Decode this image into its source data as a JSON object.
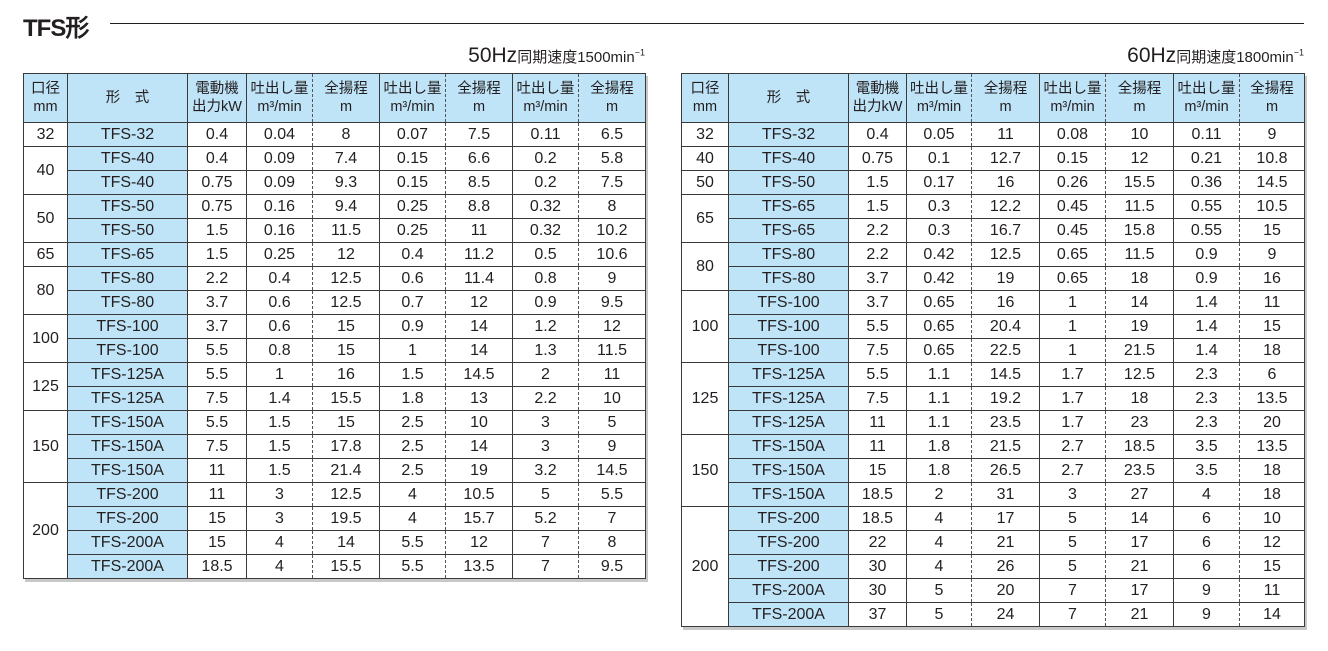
{
  "title": "TFS形",
  "headers": {
    "bore": [
      "口径",
      "mm"
    ],
    "model": "形　式",
    "power": [
      "電動機",
      "出力kW"
    ],
    "flow": [
      "吐出し量",
      "m³/min"
    ],
    "head": [
      "全揚程",
      "m"
    ]
  },
  "tables": [
    {
      "hz": "50Hz",
      "speed": "同期速度1500min",
      "speed_sup": "−1",
      "groups": [
        {
          "bore": "32",
          "rows": [
            [
              "TFS-32",
              "0.4",
              "0.04",
              "8",
              "0.07",
              "7.5",
              "0.11",
              "6.5"
            ]
          ]
        },
        {
          "bore": "40",
          "rows": [
            [
              "TFS-40",
              "0.4",
              "0.09",
              "7.4",
              "0.15",
              "6.6",
              "0.2",
              "5.8"
            ],
            [
              "TFS-40",
              "0.75",
              "0.09",
              "9.3",
              "0.15",
              "8.5",
              "0.2",
              "7.5"
            ]
          ]
        },
        {
          "bore": "50",
          "rows": [
            [
              "TFS-50",
              "0.75",
              "0.16",
              "9.4",
              "0.25",
              "8.8",
              "0.32",
              "8"
            ],
            [
              "TFS-50",
              "1.5",
              "0.16",
              "11.5",
              "0.25",
              "11",
              "0.32",
              "10.2"
            ]
          ]
        },
        {
          "bore": "65",
          "rows": [
            [
              "TFS-65",
              "1.5",
              "0.25",
              "12",
              "0.4",
              "11.2",
              "0.5",
              "10.6"
            ]
          ]
        },
        {
          "bore": "80",
          "rows": [
            [
              "TFS-80",
              "2.2",
              "0.4",
              "12.5",
              "0.6",
              "11.4",
              "0.8",
              "9"
            ],
            [
              "TFS-80",
              "3.7",
              "0.6",
              "12.5",
              "0.7",
              "12",
              "0.9",
              "9.5"
            ]
          ]
        },
        {
          "bore": "100",
          "rows": [
            [
              "TFS-100",
              "3.7",
              "0.6",
              "15",
              "0.9",
              "14",
              "1.2",
              "12"
            ],
            [
              "TFS-100",
              "5.5",
              "0.8",
              "15",
              "1",
              "14",
              "1.3",
              "11.5"
            ]
          ]
        },
        {
          "bore": "125",
          "rows": [
            [
              "TFS-125A",
              "5.5",
              "1",
              "16",
              "1.5",
              "14.5",
              "2",
              "11"
            ],
            [
              "TFS-125A",
              "7.5",
              "1.4",
              "15.5",
              "1.8",
              "13",
              "2.2",
              "10"
            ]
          ]
        },
        {
          "bore": "150",
          "rows": [
            [
              "TFS-150A",
              "5.5",
              "1.5",
              "15",
              "2.5",
              "10",
              "3",
              "5"
            ],
            [
              "TFS-150A",
              "7.5",
              "1.5",
              "17.8",
              "2.5",
              "14",
              "3",
              "9"
            ],
            [
              "TFS-150A",
              "11",
              "1.5",
              "21.4",
              "2.5",
              "19",
              "3.2",
              "14.5"
            ]
          ]
        },
        {
          "bore": "200",
          "rows": [
            [
              "TFS-200",
              "11",
              "3",
              "12.5",
              "4",
              "10.5",
              "5",
              "5.5"
            ],
            [
              "TFS-200",
              "15",
              "3",
              "19.5",
              "4",
              "15.7",
              "5.2",
              "7"
            ],
            [
              "TFS-200A",
              "15",
              "4",
              "14",
              "5.5",
              "12",
              "7",
              "8"
            ],
            [
              "TFS-200A",
              "18.5",
              "4",
              "15.5",
              "5.5",
              "13.5",
              "7",
              "9.5"
            ]
          ]
        }
      ]
    },
    {
      "hz": "60Hz",
      "speed": "同期速度1800min",
      "speed_sup": "−1",
      "groups": [
        {
          "bore": "32",
          "rows": [
            [
              "TFS-32",
              "0.4",
              "0.05",
              "11",
              "0.08",
              "10",
              "0.11",
              "9"
            ]
          ]
        },
        {
          "bore": "40",
          "rows": [
            [
              "TFS-40",
              "0.75",
              "0.1",
              "12.7",
              "0.15",
              "12",
              "0.21",
              "10.8"
            ]
          ]
        },
        {
          "bore": "50",
          "rows": [
            [
              "TFS-50",
              "1.5",
              "0.17",
              "16",
              "0.26",
              "15.5",
              "0.36",
              "14.5"
            ]
          ]
        },
        {
          "bore": "65",
          "rows": [
            [
              "TFS-65",
              "1.5",
              "0.3",
              "12.2",
              "0.45",
              "11.5",
              "0.55",
              "10.5"
            ],
            [
              "TFS-65",
              "2.2",
              "0.3",
              "16.7",
              "0.45",
              "15.8",
              "0.55",
              "15"
            ]
          ]
        },
        {
          "bore": "80",
          "rows": [
            [
              "TFS-80",
              "2.2",
              "0.42",
              "12.5",
              "0.65",
              "11.5",
              "0.9",
              "9"
            ],
            [
              "TFS-80",
              "3.7",
              "0.42",
              "19",
              "0.65",
              "18",
              "0.9",
              "16"
            ]
          ]
        },
        {
          "bore": "100",
          "rows": [
            [
              "TFS-100",
              "3.7",
              "0.65",
              "16",
              "1",
              "14",
              "1.4",
              "11"
            ],
            [
              "TFS-100",
              "5.5",
              "0.65",
              "20.4",
              "1",
              "19",
              "1.4",
              "15"
            ],
            [
              "TFS-100",
              "7.5",
              "0.65",
              "22.5",
              "1",
              "21.5",
              "1.4",
              "18"
            ]
          ]
        },
        {
          "bore": "125",
          "rows": [
            [
              "TFS-125A",
              "5.5",
              "1.1",
              "14.5",
              "1.7",
              "12.5",
              "2.3",
              "6"
            ],
            [
              "TFS-125A",
              "7.5",
              "1.1",
              "19.2",
              "1.7",
              "18",
              "2.3",
              "13.5"
            ],
            [
              "TFS-125A",
              "11",
              "1.1",
              "23.5",
              "1.7",
              "23",
              "2.3",
              "20"
            ]
          ]
        },
        {
          "bore": "150",
          "rows": [
            [
              "TFS-150A",
              "11",
              "1.8",
              "21.5",
              "2.7",
              "18.5",
              "3.5",
              "13.5"
            ],
            [
              "TFS-150A",
              "15",
              "1.8",
              "26.5",
              "2.7",
              "23.5",
              "3.5",
              "18"
            ],
            [
              "TFS-150A",
              "18.5",
              "2",
              "31",
              "3",
              "27",
              "4",
              "18"
            ]
          ]
        },
        {
          "bore": "200",
          "rows": [
            [
              "TFS-200",
              "18.5",
              "4",
              "17",
              "5",
              "14",
              "6",
              "10"
            ],
            [
              "TFS-200",
              "22",
              "4",
              "21",
              "5",
              "17",
              "6",
              "12"
            ],
            [
              "TFS-200",
              "30",
              "4",
              "26",
              "5",
              "21",
              "6",
              "15"
            ],
            [
              "TFS-200A",
              "30",
              "5",
              "20",
              "7",
              "17",
              "9",
              "11"
            ],
            [
              "TFS-200A",
              "37",
              "5",
              "24",
              "7",
              "21",
              "9",
              "14"
            ]
          ]
        }
      ]
    }
  ]
}
